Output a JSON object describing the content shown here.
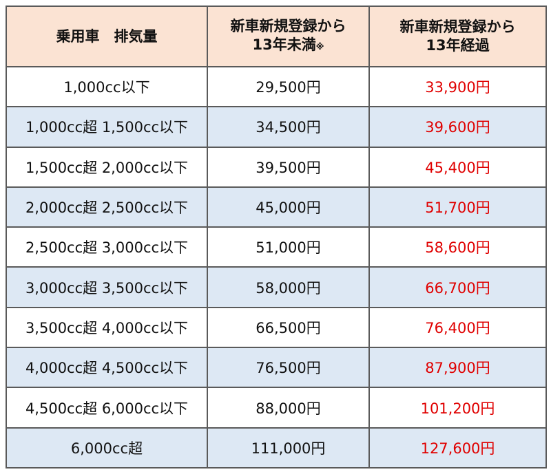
{
  "table": {
    "header": {
      "col1": "乗用車　排気量",
      "col2": {
        "line1": "新車新規登録から",
        "line2": "13年未満",
        "note": "※"
      },
      "col3": {
        "line1": "新車新規登録から",
        "line2": "13年経過"
      }
    },
    "rows": [
      [
        "1,000cc以下",
        "29,500円",
        "33,900円"
      ],
      [
        "1,000cc超 1,500cc以下",
        "34,500円",
        "39,600円"
      ],
      [
        "1,500cc超 2,000cc以下",
        "39,500円",
        "45,400円"
      ],
      [
        "2,000cc超 2,500cc以下",
        "45,000円",
        "51,700円"
      ],
      [
        "2,500cc超 3,000cc以下",
        "51,000円",
        "58,600円"
      ],
      [
        "3,000cc超 3,500cc以下",
        "58,000円",
        "66,700円"
      ],
      [
        "3,500cc超 4,000cc以下",
        "66,500円",
        "76,400円"
      ],
      [
        "4,000cc超 4,500cc以下",
        "76,500円",
        "87,900円"
      ],
      [
        "4,500cc超 6,000cc以下",
        "88,000円",
        "101,200円"
      ],
      [
        "6,000cc超",
        "111,000円",
        "127,600円"
      ]
    ]
  }
}
